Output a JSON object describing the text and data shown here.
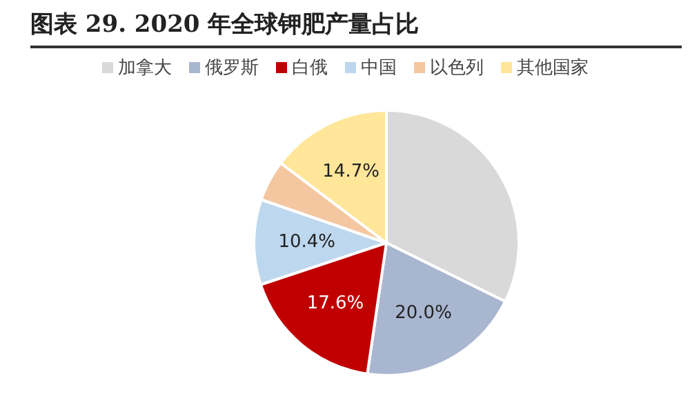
{
  "chart_data": {
    "type": "pie",
    "title": "图表 29. 2020 年全球钾肥产量占比",
    "categories": [
      "加拿大",
      "俄罗斯",
      "白俄",
      "中国",
      "以色列",
      "其他国家"
    ],
    "values": [
      32.3,
      20.0,
      17.6,
      10.4,
      5.0,
      14.7
    ],
    "colors": [
      "#d9d9d9",
      "#a9b6d0",
      "#c00000",
      "#bdd7ee",
      "#f4c7a1",
      "#ffe699"
    ],
    "value_labels": [
      null,
      "20.0%",
      "17.6%",
      "10.4%",
      null,
      "14.7%"
    ],
    "legend": "top"
  }
}
